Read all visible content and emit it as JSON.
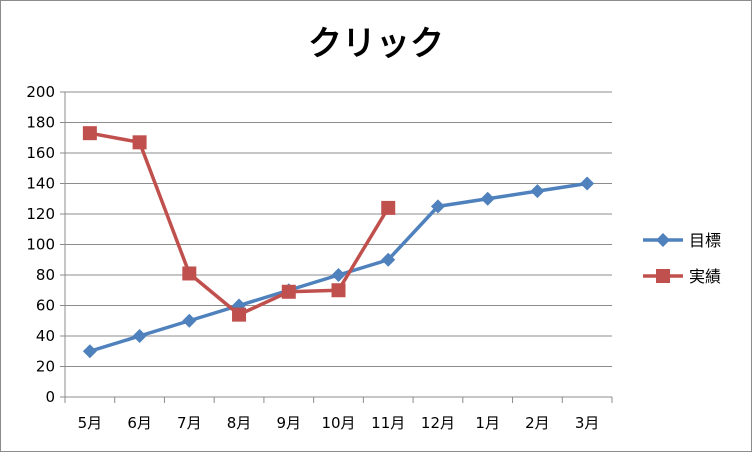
{
  "chart_data": {
    "type": "line",
    "title": "クリック",
    "categories": [
      "5月",
      "6月",
      "7月",
      "8月",
      "9月",
      "10月",
      "11月",
      "12月",
      "1月",
      "2月",
      "3月"
    ],
    "series": [
      {
        "name": "目標",
        "color": "#4f81bd",
        "marker": "diamond",
        "values": [
          30,
          40,
          50,
          60,
          70,
          80,
          90,
          125,
          130,
          135,
          140
        ]
      },
      {
        "name": "実績",
        "color": "#c0504d",
        "marker": "square",
        "values": [
          173,
          167,
          81,
          54,
          69,
          70,
          124,
          null,
          null,
          null,
          null
        ]
      }
    ],
    "ylim": [
      0,
      200
    ],
    "yticks": [
      0,
      20,
      40,
      60,
      80,
      100,
      120,
      140,
      160,
      180,
      200
    ],
    "grid": true,
    "legend": "right"
  }
}
